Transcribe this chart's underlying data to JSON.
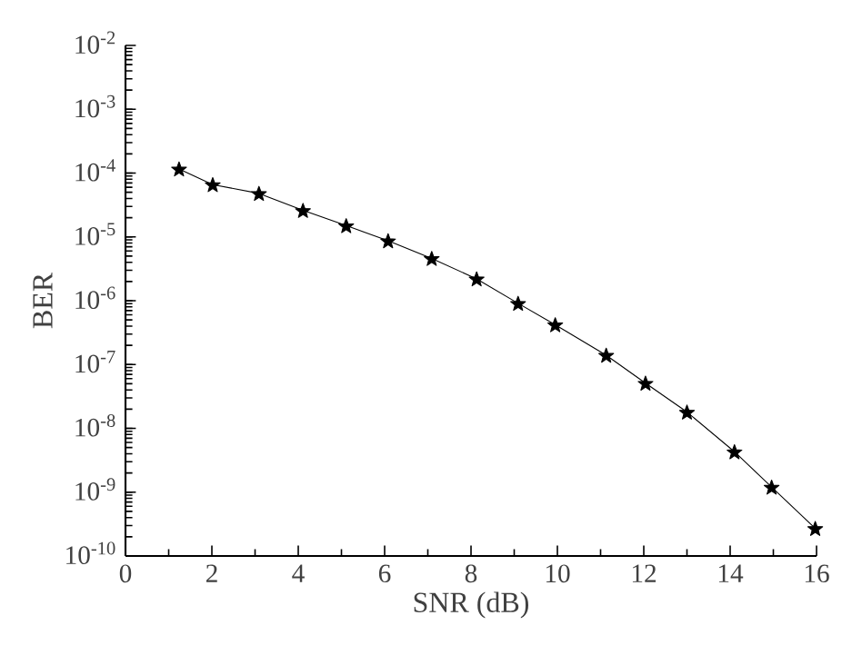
{
  "chart_data": {
    "type": "line",
    "xlabel": "SNR (dB)",
    "ylabel": "BER",
    "log": "y",
    "marker": "star",
    "line_style": "solid",
    "grid": false,
    "x": [
      1.24,
      2.02,
      3.09,
      4.11,
      5.11,
      6.08,
      7.09,
      8.13,
      9.09,
      9.95,
      11.13,
      12.04,
      13.0,
      14.1,
      14.96,
      15.97
    ],
    "series": [
      {
        "color": "#000000",
        "values": [
          0.000116,
          6.6e-05,
          4.8e-05,
          2.6e-05,
          1.5e-05,
          8.7e-06,
          4.6e-06,
          2.2e-06,
          9.1e-07,
          4.2e-07,
          1.4e-07,
          5.1e-08,
          1.8e-08,
          4.3e-09,
          1.2e-09,
          2.7e-10
        ]
      }
    ],
    "xlim": [
      0,
      16
    ],
    "xticks": [
      0,
      2,
      4,
      6,
      8,
      10,
      12,
      14,
      16
    ],
    "ylim": [
      1e-10,
      0.01
    ],
    "yticks": [
      {
        "value": 1e-10,
        "label": "10$^{-10}$"
      },
      {
        "value": 1e-09,
        "label": "10$^{-9}$"
      },
      {
        "value": 1e-08,
        "label": "10$^{-8}$"
      },
      {
        "value": 1e-07,
        "label": "10$^{-7}$"
      },
      {
        "value": 1e-06,
        "label": "10$^{-6}$"
      },
      {
        "value": 1e-05,
        "label": "10$^{-5}$"
      },
      {
        "value": 0.0001,
        "label": "10$^{-4}$"
      },
      {
        "value": 0.001,
        "label": "10$^{-3}$"
      },
      {
        "value": 0.01,
        "label": "10$^{-2}$"
      }
    ]
  }
}
